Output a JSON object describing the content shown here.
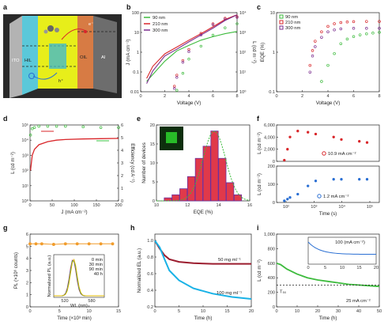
{
  "panel_labels": {
    "a": "a",
    "b": "b",
    "c": "c",
    "d": "d",
    "e": "e",
    "f": "f",
    "g": "g",
    "h": "h",
    "i": "i"
  },
  "panel_a": {
    "layers": [
      "ITO",
      "HIL",
      "OIL",
      "Al"
    ],
    "electron": "e⁻",
    "hole": "h⁺"
  },
  "colors": {
    "green": "#3dbb3d",
    "red": "#d9262a",
    "purple": "#7b2d8e",
    "blue": "#2a6fd3",
    "orange": "#f19c2c",
    "cyan": "#19b2e6",
    "darkred": "#9b1c2e",
    "gold": "#e0b800"
  },
  "chart_data": [
    {
      "id": "b",
      "type": "line",
      "xlabel": "Voltage (V)",
      "ylabel": "J (mA cm⁻²)",
      "y2label": "L (cd m⁻²)",
      "xlim": [
        0,
        8
      ],
      "xticks": [
        "0",
        "2",
        "4",
        "6",
        "8"
      ],
      "yticks": [
        "0.01",
        "0.1",
        "1",
        "10",
        "100"
      ],
      "y2ticks": [
        "10⁰",
        "10¹",
        "10²",
        "10³",
        "10⁴"
      ],
      "series": [
        {
          "name": "90 nm",
          "color": "#3dbb3d",
          "x": [
            0.5,
            1,
            2,
            3,
            4,
            5,
            6,
            7,
            8
          ],
          "y": [
            0.02,
            0.05,
            0.3,
            1.2,
            2.5,
            5,
            8,
            12,
            16
          ],
          "x2": [
            3,
            3.5,
            4,
            5,
            6,
            7,
            8
          ],
          "L": [
            1.2,
            10,
            60,
            300,
            1200,
            3000,
            5000
          ]
        },
        {
          "name": "210 nm",
          "color": "#d9262a",
          "x": [
            0.5,
            1,
            2,
            3,
            4,
            5,
            6,
            7,
            8
          ],
          "y": [
            0.03,
            0.15,
            0.8,
            2,
            5,
            12,
            30,
            80,
            150
          ],
          "x2": [
            2.8,
            3,
            3.5,
            4,
            5,
            6,
            7,
            8
          ],
          "L": [
            2,
            8,
            50,
            200,
            1500,
            5000,
            10000,
            12000
          ]
        },
        {
          "name": "300 nm",
          "color": "#7b2d8e",
          "x": [
            0.5,
            1,
            2,
            3,
            4,
            5,
            6,
            7,
            8
          ],
          "y": [
            0.015,
            0.08,
            0.6,
            1.5,
            4,
            10,
            25,
            70,
            150
          ],
          "x2": [
            2.8,
            3,
            3.5,
            4,
            5,
            6,
            7,
            8
          ],
          "L": [
            1.5,
            6,
            40,
            150,
            1200,
            4500,
            9000,
            11000
          ]
        }
      ],
      "legend": [
        "90 nm",
        "210 nm",
        "300 nm"
      ]
    },
    {
      "id": "c",
      "type": "scatter",
      "xlabel": "Voltage (V)",
      "ylabel": "EQE (%)",
      "xlim": [
        0,
        8
      ],
      "xticks": [
        "0",
        "2",
        "4",
        "6",
        "8"
      ],
      "yticks": [
        "0.1",
        "1",
        "10"
      ],
      "series": [
        {
          "name": "90 nm",
          "color": "#3dbb3d",
          "x": [
            3.5,
            4,
            4.5,
            5,
            5.5,
            6,
            6.5,
            7,
            7.5,
            8
          ],
          "y": [
            0.15,
            0.5,
            1.2,
            2.5,
            3.5,
            4.2,
            4.8,
            5.2,
            5.5,
            5.8
          ]
        },
        {
          "name": "210 nm",
          "color": "#d9262a",
          "x": [
            2.6,
            2.8,
            3,
            3.5,
            4,
            4.5,
            5,
            5.5,
            6,
            7,
            8
          ],
          "y": [
            0.5,
            1.5,
            3,
            6,
            9,
            11,
            12,
            12.5,
            12.8,
            13,
            13
          ]
        },
        {
          "name": "300 nm",
          "color": "#7b2d8e",
          "x": [
            2.6,
            2.8,
            3,
            3.5,
            4,
            4.5,
            5,
            6,
            7,
            8
          ],
          "y": [
            0.3,
            1,
            2,
            4,
            6,
            7,
            7.5,
            7.8,
            7.8,
            7.8
          ]
        }
      ],
      "legend": [
        "90 nm",
        "210 nm",
        "300 nm"
      ]
    },
    {
      "id": "d",
      "type": "line",
      "xlabel": "J (mA cm⁻²)",
      "ylabel": "L (cd m⁻²)",
      "y2label": "Efficiency (cd A⁻¹)",
      "xlim": [
        0,
        200
      ],
      "xticks": [
        "0",
        "50",
        "100",
        "150",
        "200"
      ],
      "yticks": [
        "10⁰",
        "10¹",
        "10²",
        "10³",
        "10⁴",
        "10⁵"
      ],
      "y2ticks": [
        "0",
        "1",
        "2",
        "3",
        "4",
        "5",
        "6"
      ],
      "series": [
        {
          "name": "L",
          "color": "#d9262a",
          "x": [
            1,
            5,
            10,
            20,
            40,
            60,
            80,
            120,
            160,
            200
          ],
          "y": [
            100,
            1000,
            2500,
            5000,
            8000,
            10000,
            11000,
            12000,
            12500,
            13000
          ]
        },
        {
          "name": "Efficiency",
          "color": "#3dbb3d",
          "x": [
            1,
            5,
            10,
            20,
            40,
            60,
            80,
            120,
            160,
            200
          ],
          "y": [
            5.2,
            5.7,
            5.8,
            5.9,
            5.9,
            5.9,
            5.9,
            5.85,
            5.8,
            5.8
          ]
        }
      ]
    },
    {
      "id": "e",
      "type": "bar",
      "xlabel": "EQE (%)",
      "ylabel": "Number of devices",
      "xticks": [
        "10",
        "12",
        "14",
        "16"
      ],
      "yticks": [
        "0",
        "5",
        "10",
        "15",
        "20"
      ],
      "ylim": [
        0,
        25
      ],
      "categories": [
        "11",
        "11.5",
        "12",
        "12.5",
        "13",
        "13.5",
        "14",
        "14.5",
        "15",
        "15.5"
      ],
      "values": [
        1,
        2,
        4,
        8,
        14,
        18,
        23,
        14,
        6,
        2
      ]
    },
    {
      "id": "f",
      "type": "scatter",
      "xlabel": "Time (s)",
      "ylabel_top": "L (cd m⁻²)",
      "ylabel_bottom": "L (cd m⁻²)",
      "xticks": [
        "10²",
        "10³",
        "10⁴",
        "10⁵"
      ],
      "yticks_top": [
        "0",
        "2,000",
        "4,000",
        "6,000"
      ],
      "yticks_bottom": [
        "0",
        "100",
        "200"
      ],
      "series": [
        {
          "name": "10.9 mA cm⁻²",
          "color": "#d9262a",
          "x": [
            60,
            80,
            100,
            200,
            500,
            1000,
            5000,
            10000,
            50000,
            100000
          ],
          "y": [
            200,
            2000,
            4000,
            5000,
            4800,
            4500,
            4000,
            3600,
            3300,
            3100
          ]
        },
        {
          "name": "1.2 mA cm⁻²",
          "color": "#2a6fd3",
          "x": [
            60,
            80,
            100,
            200,
            500,
            1000,
            5000,
            10000,
            50000,
            100000
          ],
          "y": [
            10,
            20,
            30,
            50,
            100,
            130,
            140,
            140,
            140,
            140
          ]
        }
      ],
      "legend": [
        "10.9 mA cm⁻²",
        "1.2 mA cm⁻²"
      ]
    },
    {
      "id": "g",
      "type": "line",
      "xlabel": "Time (×10³ min)",
      "ylabel": "PL (×10⁶ counts)",
      "xticks": [
        "0",
        "5",
        "10",
        "15"
      ],
      "yticks": [
        "0",
        "1",
        "2",
        "3",
        "4",
        "5",
        "6"
      ],
      "ylim": [
        0,
        6
      ],
      "series": [
        {
          "name": "PL",
          "color": "#f19c2c",
          "x": [
            0,
            1,
            2,
            4,
            6,
            8,
            10,
            12,
            14
          ],
          "y": [
            5.2,
            5.2,
            5.2,
            5.15,
            5.2,
            5.2,
            5.2,
            5.2,
            5.2
          ]
        }
      ],
      "inset": {
        "xlabel": "WL (nm)",
        "ylabel": "Normalized PL (a.u.)",
        "xticks": [
          "520",
          "580"
        ],
        "legend": [
          "0 min",
          "30 min",
          "90 min",
          "40 h"
        ],
        "legend_colors": [
          "#d9262a",
          "#2a6fd3",
          "#3dbb3d",
          "#e0b800"
        ]
      }
    },
    {
      "id": "h",
      "type": "line",
      "xlabel": "Time (h)",
      "ylabel": "Normalized EL (a.u.)",
      "xticks": [
        "0",
        "5",
        "10",
        "15",
        "20"
      ],
      "yticks": [
        "0.2",
        "0.4",
        "0.6",
        "0.8",
        "1.0"
      ],
      "ylim": [
        0,
        1.1
      ],
      "series": [
        {
          "name": "50 mg ml⁻¹",
          "color": "#9b1c2e",
          "x": [
            0,
            1,
            2,
            3,
            5,
            8,
            12,
            16,
            20
          ],
          "y": [
            1,
            0.88,
            0.78,
            0.72,
            0.68,
            0.66,
            0.65,
            0.65,
            0.65
          ]
        },
        {
          "name": "100 mg ml⁻¹",
          "color": "#19b2e6",
          "x": [
            0,
            1,
            2,
            3,
            5,
            8,
            12,
            16,
            20
          ],
          "y": [
            1,
            0.9,
            0.72,
            0.55,
            0.4,
            0.28,
            0.2,
            0.15,
            0.12
          ]
        }
      ]
    },
    {
      "id": "i",
      "type": "line",
      "xlabel": "Time (h)",
      "ylabel": "L (cd m⁻²)",
      "xticks": [
        "0",
        "10",
        "20",
        "30",
        "40",
        "50"
      ],
      "yticks": [
        "0",
        "200",
        "400",
        "600",
        "800",
        "1,000"
      ],
      "ylim": [
        0,
        1000
      ],
      "t50_label": "T₅₀",
      "series": [
        {
          "name": "25 mA cm⁻²",
          "color": "#3dbb3d",
          "x": [
            0,
            2,
            5,
            10,
            15,
            20,
            25,
            30,
            35,
            40,
            45,
            50
          ],
          "y": [
            600,
            580,
            520,
            450,
            400,
            370,
            350,
            330,
            310,
            300,
            290,
            280
          ]
        }
      ],
      "inset": {
        "label": "100 (mA cm⁻²)",
        "ylabel": "L (cd m⁻²)",
        "xticks": [
          "0",
          "5",
          "10",
          "15",
          "20"
        ],
        "yticks": [
          "2,000",
          "4,000",
          "6,000",
          "8,000"
        ],
        "color": "#2a6fd3"
      }
    }
  ]
}
